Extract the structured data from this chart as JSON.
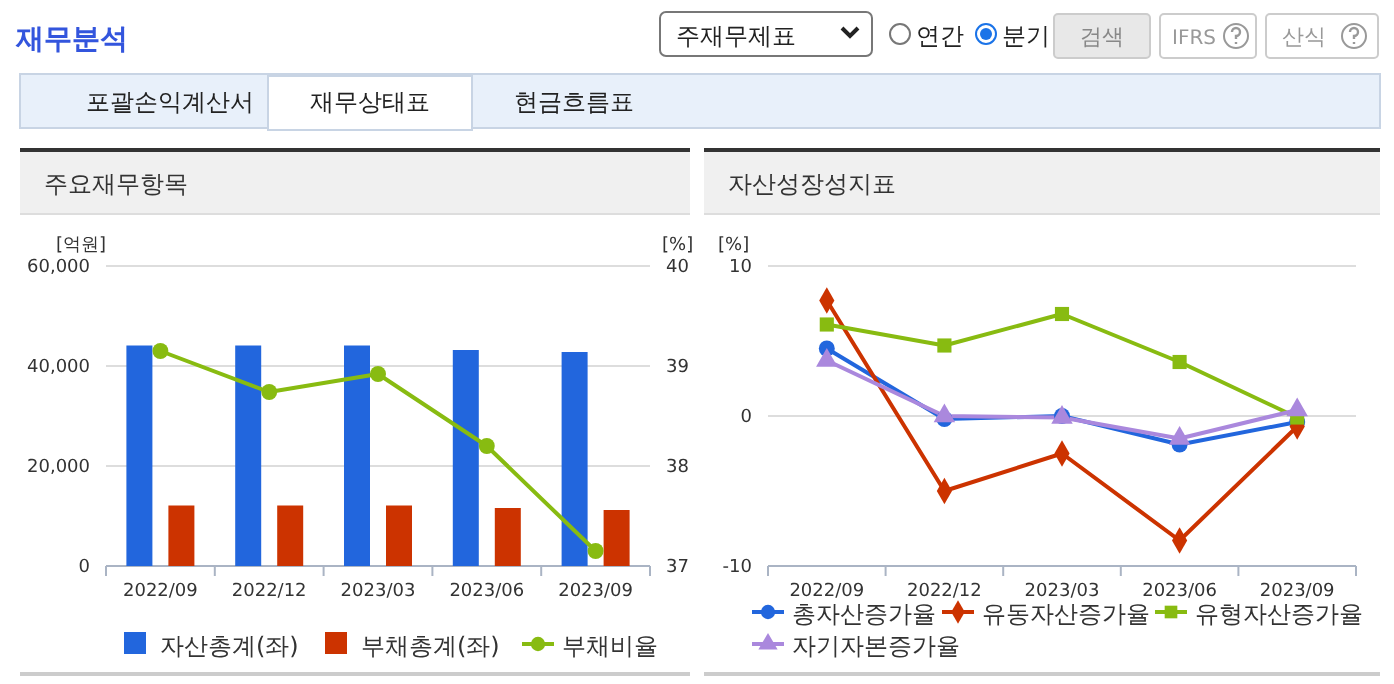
{
  "chart_data": [
    {
      "type": "bar",
      "title": "주요재무항목",
      "ylabel": "[억원]",
      "y2label": "[%]",
      "categories": [
        "2022/09",
        "2022/12",
        "2023/03",
        "2023/06",
        "2023/09"
      ],
      "series": [
        {
          "name": "자산총계(좌)",
          "color": "#2266dd",
          "values": [
            44100,
            44100,
            44100,
            43200,
            42800
          ]
        },
        {
          "name": "부채총계(좌)",
          "color": "#cc3300",
          "values": [
            12100,
            12100,
            12100,
            11600,
            11200
          ]
        },
        {
          "name": "부채비율",
          "type": "line",
          "axis": "y2",
          "color": "#88bb11",
          "marker": "circle",
          "values": [
            39.15,
            38.74,
            38.92,
            38.2,
            37.15
          ]
        }
      ],
      "ylim": [
        0,
        60000
      ],
      "yticks": [
        0,
        {
          "value": 20000,
          "label": "20,000"
        },
        {
          "value": 40000,
          "label": "40,000"
        },
        {
          "value": 60000,
          "label": "60,000"
        }
      ],
      "y2lim": [
        37,
        40
      ],
      "y2ticks": [
        37,
        38,
        39,
        40
      ],
      "grid": "y",
      "legend": "bottom",
      "annotations": [
        "재무분석",
        "주재무제표",
        "연간",
        "분기",
        "검색",
        "IFRS",
        "산식",
        "포괄손익계산서",
        "재무상태표",
        "현금흐름표"
      ]
    },
    {
      "type": "line",
      "title": "자산성장성지표",
      "ylabel": "[%]",
      "categories": [
        "2022/09",
        "2022/12",
        "2023/03",
        "2023/06",
        "2023/09"
      ],
      "series": [
        {
          "name": "총자산증가율",
          "color": "#2266dd",
          "marker": "circle",
          "values": [
            4.5,
            -0.2,
            0,
            -1.9,
            -0.4
          ]
        },
        {
          "name": "유동자산증가율",
          "color": "#cc3300",
          "marker": "diamond",
          "values": [
            7.7,
            -5.0,
            -2.5,
            -8.3,
            -0.7
          ]
        },
        {
          "name": "유형자산증가율",
          "color": "#88bb11",
          "marker": "square",
          "values": [
            6.1,
            4.7,
            6.8,
            3.6,
            -0.1
          ]
        },
        {
          "name": "자기자본증가율",
          "color": "#aa88dd",
          "marker": "triangle",
          "values": [
            3.7,
            0,
            -0.1,
            -1.5,
            0.4
          ]
        }
      ],
      "ylim": [
        -10,
        10
      ],
      "yticks": [
        -10,
        0,
        10
      ],
      "grid": "y",
      "legend": "bottom"
    }
  ]
}
